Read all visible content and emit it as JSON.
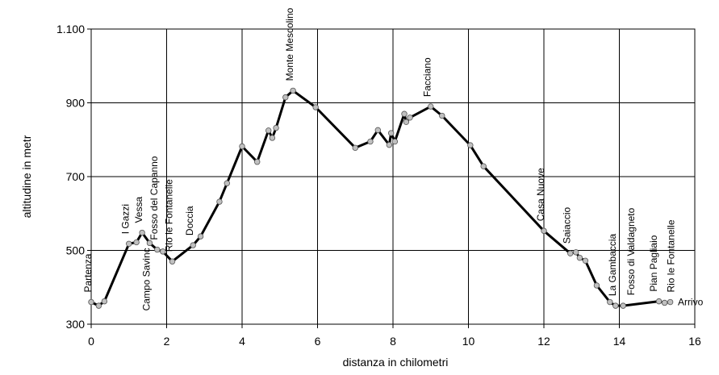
{
  "chart_data": {
    "type": "line",
    "title": "",
    "xlabel": "distanza in chilometri",
    "ylabel": "altitudine  in metr",
    "xlim": [
      0,
      16
    ],
    "ylim": [
      300,
      1100
    ],
    "x_ticks": [
      0,
      2,
      4,
      6,
      8,
      10,
      12,
      14,
      16
    ],
    "x_tick_labels": [
      "0",
      "2",
      "4",
      "6",
      "8",
      "10",
      "12",
      "14",
      "16"
    ],
    "y_ticks": [
      300,
      500,
      700,
      900,
      1100
    ],
    "y_tick_labels": [
      "300",
      "500",
      "700",
      "900",
      "1.100"
    ],
    "grid": true,
    "colors": {
      "line": "#000000",
      "marker": "#c0c0c0",
      "grid": "#000000"
    },
    "series": [
      {
        "x": [
          0.0,
          0.2,
          0.35,
          1.0,
          1.2,
          1.35,
          1.55,
          1.75,
          1.9,
          2.15,
          2.7,
          2.9,
          3.4,
          3.6,
          4.0,
          4.4,
          4.7,
          4.8,
          4.9,
          5.15,
          5.35,
          5.95,
          7.0,
          7.4,
          7.6,
          7.9,
          7.95,
          8.05,
          8.3,
          8.35,
          8.45,
          9.0,
          9.3,
          10.05,
          10.4,
          12.0,
          12.7,
          12.85,
          12.95,
          13.1,
          13.4,
          13.75,
          13.9,
          14.1,
          15.05,
          15.2,
          15.35
        ],
        "y": [
          360,
          350,
          362,
          518,
          522,
          548,
          520,
          502,
          497,
          470,
          514,
          538,
          632,
          682,
          782,
          740,
          825,
          805,
          832,
          915,
          933,
          888,
          778,
          795,
          826,
          786,
          818,
          795,
          870,
          848,
          860,
          890,
          865,
          785,
          728,
          553,
          492,
          495,
          480,
          472,
          405,
          360,
          350,
          350,
          362,
          358,
          360
        ]
      }
    ],
    "annotations": [
      {
        "label": "Partenza",
        "x": 0.0,
        "y": 360,
        "side": "above"
      },
      {
        "label": "Campo Savinc",
        "x": 1.55,
        "y": 520,
        "side": "below"
      },
      {
        "label": "I Gazzi",
        "x": 1.0,
        "y": 518,
        "side": "above"
      },
      {
        "label": "Vessa",
        "x": 1.35,
        "y": 548,
        "side": "above"
      },
      {
        "label": "Fosso del Capanno",
        "x": 1.75,
        "y": 502,
        "side": "above"
      },
      {
        "label": "Rio le Fontanelle",
        "x": 2.15,
        "y": 470,
        "side": "above"
      },
      {
        "label": "Doccia",
        "x": 2.7,
        "y": 514,
        "side": "above"
      },
      {
        "label": "Monte Mescolino",
        "x": 5.35,
        "y": 933,
        "side": "above"
      },
      {
        "label": "Facciano",
        "x": 9.0,
        "y": 890,
        "side": "above"
      },
      {
        "label": "Casa Nuove",
        "x": 12.0,
        "y": 553,
        "side": "above"
      },
      {
        "label": "Saiaccio",
        "x": 12.7,
        "y": 492,
        "side": "above"
      },
      {
        "label": "La Gambaccia",
        "x": 13.9,
        "y": 350,
        "side": "above"
      },
      {
        "label": "Fosso di Valdagneto",
        "x": 14.4,
        "y": 352,
        "side": "above"
      },
      {
        "label": "Pian Pagliaio",
        "x": 15.0,
        "y": 362,
        "side": "above"
      },
      {
        "label": "Rio le Fontanelle",
        "x": 15.45,
        "y": 360,
        "side": "above"
      },
      {
        "label": "Arrivo",
        "x": 15.4,
        "y": 360,
        "side": "right"
      }
    ]
  }
}
